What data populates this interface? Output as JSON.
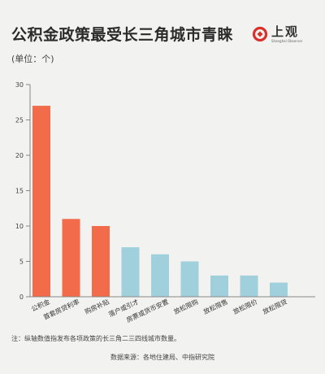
{
  "header": {
    "title": "公积金政策最受长三角城市青睐",
    "unit": "(单位：个)"
  },
  "logo": {
    "name": "上观",
    "subtitle": "Shanghai Observer",
    "icon": "shangguan-logo-icon",
    "color": "#d9302b"
  },
  "chart_data": {
    "type": "bar",
    "categories": [
      "公积金",
      "首套房贷利率",
      "购房补贴",
      "落户或引才",
      "房票或货币安置",
      "放松限购",
      "放松限售",
      "放松限价",
      "放松限贷"
    ],
    "values": [
      27,
      11,
      10,
      7,
      6,
      5,
      3,
      3,
      2
    ],
    "highlight_count": 3,
    "colors": {
      "highlight": "#f26b4a",
      "normal": "#9fd0dc"
    },
    "ylim": [
      0,
      30
    ],
    "yticks": [
      0,
      5,
      10,
      15,
      20,
      25,
      30
    ],
    "grid": false,
    "xlabel": "",
    "ylabel": ""
  },
  "footer": {
    "note": "注：纵轴数值指发布各项政策的长三角二三四线城市数量。",
    "source": "数据来源：各地住建局、中指研究院"
  }
}
